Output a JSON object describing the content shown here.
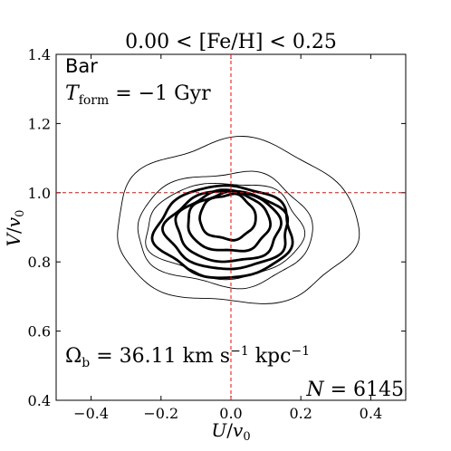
{
  "chart_data": {
    "type": "contour",
    "title": "0.00 < [Fe/H] < 0.25",
    "xlabel": "U/v0",
    "ylabel": "V/v0",
    "xlim": [
      -0.5,
      0.5
    ],
    "ylim": [
      0.4,
      1.4
    ],
    "xticks": [
      -0.4,
      -0.2,
      0.0,
      0.2,
      0.4
    ],
    "xtick_labels": [
      "−0.4",
      "−0.2",
      "0.0",
      "0.2",
      "0.4"
    ],
    "yticks": [
      0.4,
      0.6,
      0.8,
      1.0,
      1.2,
      1.4
    ],
    "ytick_labels": [
      "0.4",
      "0.6",
      "0.8",
      "1.0",
      "1.2",
      "1.4"
    ],
    "grid": false,
    "reference_lines": {
      "vertical_x": 0.0,
      "horizontal_y": 1.0,
      "color": "#ff0000",
      "style": "dashed"
    },
    "annotations": {
      "model": "Bar",
      "tform": "T_form = −1 Gyr",
      "omega": "Ω_b = 36.11 km s⁻¹ kpc⁻¹",
      "n": "N = 6145"
    },
    "contours": [
      {
        "level": 1,
        "bold": false,
        "center": [
          0.0,
          0.89
        ],
        "hw": [
          0.33,
          0.36
        ],
        "hh": [
          0.26,
          0.21
        ]
      },
      {
        "level": 2,
        "bold": false,
        "center": [
          0.0,
          0.89
        ],
        "hw": [
          0.27,
          0.23
        ],
        "hh": [
          0.17,
          0.16
        ]
      },
      {
        "level": 3,
        "bold": false,
        "center": [
          0.0,
          0.89
        ],
        "hw": [
          0.245,
          0.205
        ],
        "hh": [
          0.14,
          0.135
        ]
      },
      {
        "level": 4,
        "bold": true,
        "center": [
          0.0,
          0.885
        ],
        "hw": [
          0.215,
          0.175
        ],
        "hh": [
          0.135,
          0.13
        ]
      },
      {
        "level": 5,
        "bold": true,
        "center": [
          0.0,
          0.89
        ],
        "hw": [
          0.185,
          0.165
        ],
        "hh": [
          0.115,
          0.11
        ]
      },
      {
        "level": 6,
        "bold": true,
        "center": [
          0.0,
          0.9
        ],
        "hw": [
          0.155,
          0.14
        ],
        "hh": [
          0.105,
          0.1
        ]
      },
      {
        "level": 7,
        "bold": true,
        "center": [
          0.0,
          0.91
        ],
        "hw": [
          0.125,
          0.11
        ],
        "hh": [
          0.09,
          0.08
        ]
      },
      {
        "level": 8,
        "bold": true,
        "center": [
          -0.005,
          0.925
        ],
        "hw": [
          0.085,
          0.075
        ],
        "hh": [
          0.07,
          0.06
        ]
      }
    ],
    "colors": {
      "contour": "#000000",
      "ref_line": "#ff0000"
    }
  }
}
